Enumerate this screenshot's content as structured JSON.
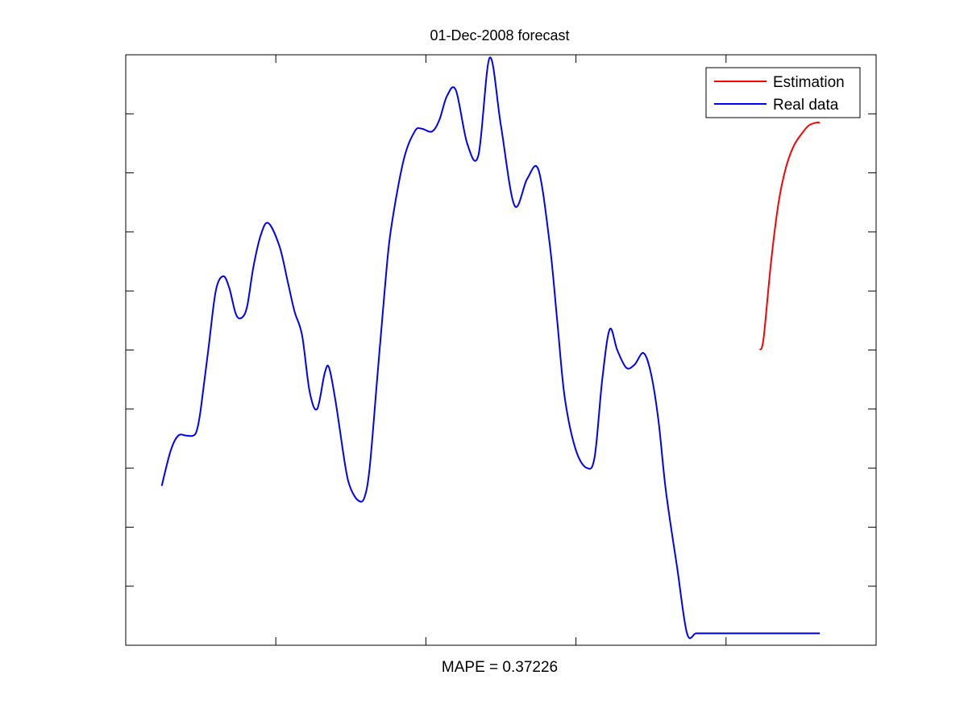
{
  "chart_data": {
    "type": "line",
    "title": "01-Dec-2008 forecast",
    "xlabel": "MAPE = 0.37226",
    "ylabel": "",
    "xlim": [
      0,
      100
    ],
    "ylim": [
      0,
      10
    ],
    "x_tick_count": 5,
    "y_tick_count": 11,
    "grid": false,
    "legend_position": "top-right",
    "series": [
      {
        "name": "Real data",
        "color": "#0000ff",
        "x": [
          4.8,
          6,
          7,
          8.1,
          9,
          9.5,
          10,
          11,
          12,
          13,
          13.8,
          14.7,
          15.5,
          16.2,
          17,
          18,
          19,
          20.5,
          21.6,
          22.5,
          23.5,
          24.5,
          25.5,
          26.5,
          27.1,
          28,
          29.3,
          30,
          31,
          31.8,
          32.5,
          33.5,
          34.5,
          35.3,
          37,
          38.5,
          39.4,
          40.8,
          41.8,
          42.8,
          44,
          45.5,
          47,
          48.5,
          50,
          51.8,
          53.5,
          55,
          56.5,
          57.5,
          58.5,
          60,
          61.5,
          62.5,
          63.5,
          64.5,
          65.5,
          66.7,
          67.8,
          69,
          70,
          71,
          72,
          73.5,
          74.8,
          76,
          77.5,
          78,
          78.6,
          79.5,
          80.5,
          81.5,
          82.5,
          83.5,
          84.5,
          85.5,
          86.5,
          87.5,
          88.5,
          89.5,
          90.5,
          91.5,
          92.1,
          92.5
        ],
        "y": [
          2.7,
          3.3,
          3.55,
          3.55,
          3.55,
          3.65,
          4.0,
          5.0,
          6.0,
          6.25,
          6.05,
          5.6,
          5.55,
          5.75,
          6.4,
          6.95,
          7.15,
          6.75,
          6.15,
          5.65,
          5.25,
          4.3,
          4.0,
          4.6,
          4.7,
          4.1,
          3.0,
          2.65,
          2.45,
          2.5,
          3.0,
          4.5,
          6.0,
          7.0,
          8.2,
          8.7,
          8.75,
          8.7,
          8.9,
          9.3,
          9.4,
          8.5,
          8.3,
          9.95,
          8.8,
          7.45,
          7.9,
          8.05,
          6.8,
          5.5,
          4.2,
          3.3,
          3.0,
          3.2,
          4.5,
          5.35,
          5.0,
          4.7,
          4.75,
          4.95,
          4.6,
          3.8,
          2.6,
          1.3,
          0.2,
          0.2,
          0.2,
          0.2,
          0.2,
          0.2,
          0.2,
          0.2,
          0.2,
          0.2,
          0.2,
          0.2,
          0.2,
          0.2,
          0.2,
          0.2,
          0.2,
          0.2,
          0.2,
          0.2
        ]
      },
      {
        "name": "Estimation",
        "color": "#ff0000",
        "x": [
          84.5,
          85,
          86,
          87,
          88,
          89,
          90,
          91,
          92,
          92.5
        ],
        "y": [
          5.0,
          5.2,
          6.5,
          7.5,
          8.1,
          8.45,
          8.65,
          8.8,
          8.85,
          8.85
        ]
      }
    ]
  }
}
